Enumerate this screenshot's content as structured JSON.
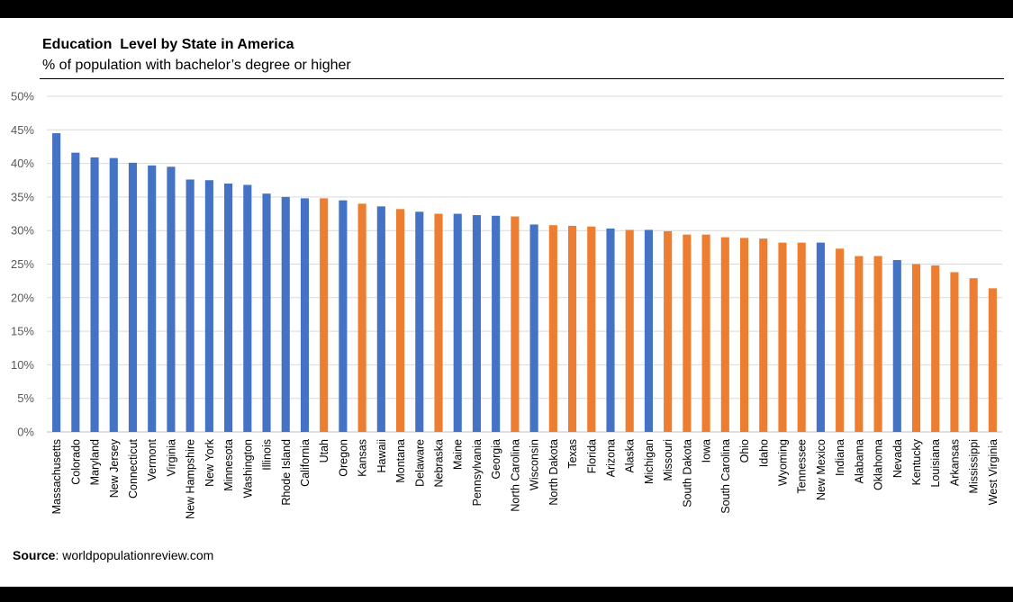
{
  "title": "Education  Level by State in America",
  "subtitle": "% of population with bachelor’s degree or higher",
  "source": {
    "label": "Source",
    "text": ": worldpopulationreview.com"
  },
  "colors": {
    "blue": "#4472C4",
    "orange": "#ED7D31",
    "grid": "#D9D9D9"
  },
  "chart_data": {
    "type": "bar",
    "ylim": [
      0,
      0.5
    ],
    "yticks": [
      "0%",
      "5%",
      "10%",
      "15%",
      "20%",
      "25%",
      "30%",
      "35%",
      "40%",
      "45%",
      "50%"
    ],
    "grid": true,
    "categories": [
      "Massachusetts",
      "Colorado",
      "Maryland",
      "New Jersey",
      "Connecticut",
      "Vermont",
      "Virginia",
      "New Hampshire",
      "New York",
      "Minnesota",
      "Washington",
      "Illinois",
      "Rhode Island",
      "California",
      "Utah",
      "Oregon",
      "Kansas",
      "Hawaii",
      "Montana",
      "Delaware",
      "Nebraska",
      "Maine",
      "Pennsylvania",
      "Georgia",
      "North Carolina",
      "Wisconsin",
      "North Dakota",
      "Texas",
      "Florida",
      "Arizona",
      "Alaska",
      "Michigan",
      "Missouri",
      "South Dakota",
      "Iowa",
      "South Carolina",
      "Ohio",
      "Idaho",
      "Wyoming",
      "Tennessee",
      "New Mexico",
      "Indiana",
      "Alabama",
      "Oklahoma",
      "Nevada",
      "Kentucky",
      "Louisiana",
      "Arkansas",
      "Mississippi",
      "West Virginia"
    ],
    "values": [
      0.445,
      0.416,
      0.409,
      0.408,
      0.401,
      0.397,
      0.395,
      0.376,
      0.375,
      0.37,
      0.368,
      0.355,
      0.35,
      0.348,
      0.348,
      0.345,
      0.34,
      0.336,
      0.332,
      0.328,
      0.325,
      0.325,
      0.323,
      0.322,
      0.321,
      0.309,
      0.308,
      0.307,
      0.306,
      0.303,
      0.301,
      0.301,
      0.299,
      0.294,
      0.294,
      0.29,
      0.289,
      0.288,
      0.282,
      0.282,
      0.282,
      0.273,
      0.262,
      0.262,
      0.256,
      0.25,
      0.248,
      0.238,
      0.229,
      0.214
    ],
    "bar_colors": [
      "blue",
      "blue",
      "blue",
      "blue",
      "blue",
      "blue",
      "blue",
      "blue",
      "blue",
      "blue",
      "blue",
      "blue",
      "blue",
      "blue",
      "orange",
      "blue",
      "orange",
      "blue",
      "orange",
      "blue",
      "orange",
      "blue",
      "blue",
      "blue",
      "orange",
      "blue",
      "orange",
      "orange",
      "orange",
      "blue",
      "orange",
      "blue",
      "orange",
      "orange",
      "orange",
      "orange",
      "orange",
      "orange",
      "orange",
      "orange",
      "blue",
      "orange",
      "orange",
      "orange",
      "blue",
      "orange",
      "orange",
      "orange",
      "orange",
      "orange"
    ]
  }
}
